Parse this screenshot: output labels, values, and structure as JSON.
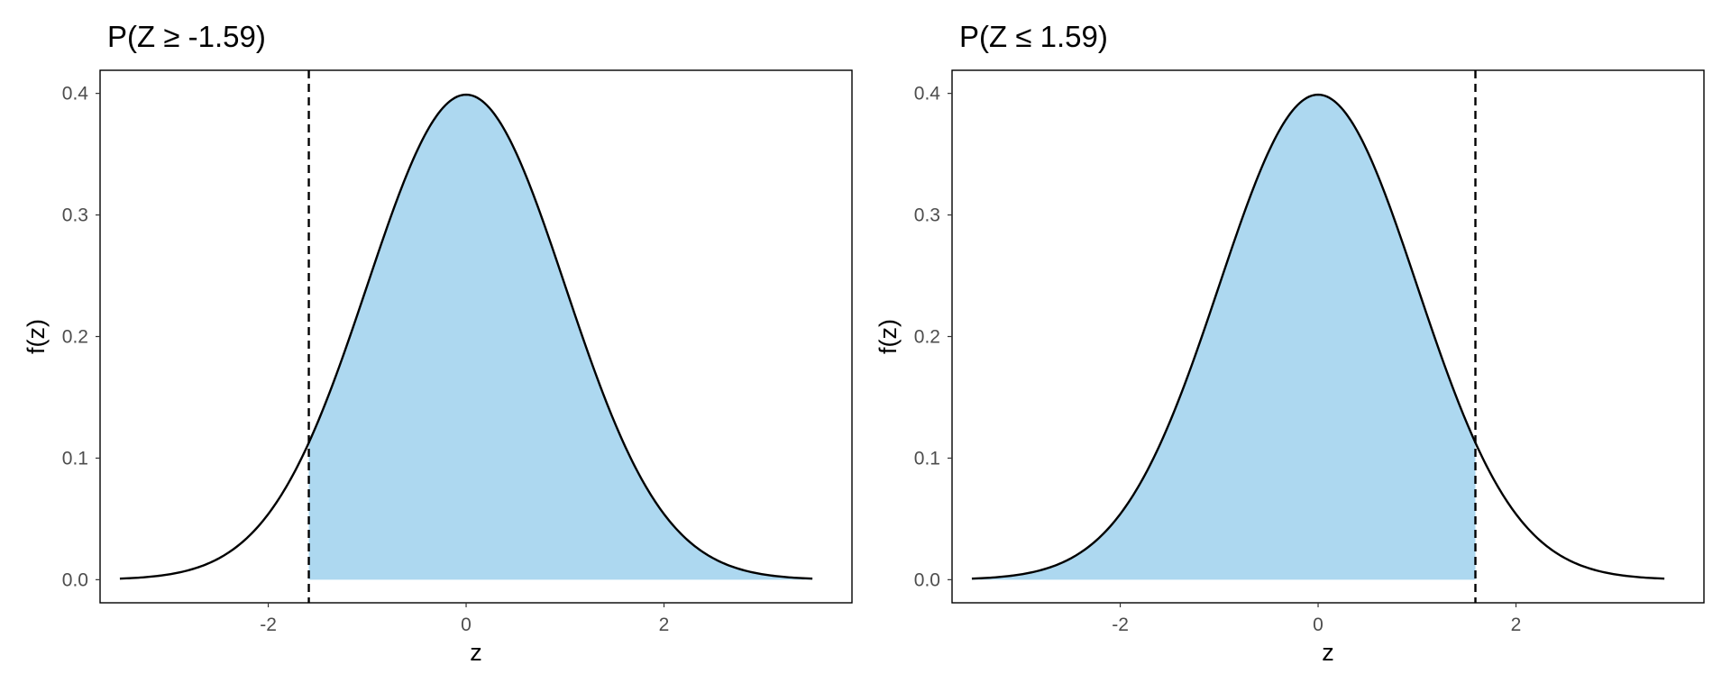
{
  "chart_data": [
    {
      "type": "area",
      "title": "P(Z ≥ -1.59)",
      "xlabel": "z",
      "ylabel": "f(z)",
      "xlim": [
        -3.7,
        3.9
      ],
      "ylim": [
        -0.019,
        0.419
      ],
      "x_ticks": [
        -2,
        0,
        2
      ],
      "x_tick_labels": [
        "-2",
        "0",
        "2"
      ],
      "y_ticks": [
        0.0,
        0.1,
        0.2,
        0.3,
        0.4
      ],
      "y_tick_labels": [
        "0.0",
        "0.1",
        "0.2",
        "0.3",
        "0.4"
      ],
      "curve": {
        "distribution": "standard normal density",
        "x_from": -3.5,
        "x_to": 3.5
      },
      "shaded_region": {
        "from": -1.59,
        "to": 3.5
      },
      "cutoff": -1.59,
      "fill_color": "#add8f0",
      "curve_color": "#000000",
      "grid": false
    },
    {
      "type": "area",
      "title": "P(Z ≤ 1.59)",
      "xlabel": "z",
      "ylabel": "f(z)",
      "xlim": [
        -3.7,
        3.9
      ],
      "ylim": [
        -0.019,
        0.419
      ],
      "x_ticks": [
        -2,
        0,
        2
      ],
      "x_tick_labels": [
        "-2",
        "0",
        "2"
      ],
      "y_ticks": [
        0.0,
        0.1,
        0.2,
        0.3,
        0.4
      ],
      "y_tick_labels": [
        "0.0",
        "0.1",
        "0.2",
        "0.3",
        "0.4"
      ],
      "curve": {
        "distribution": "standard normal density",
        "x_from": -3.5,
        "x_to": 3.5
      },
      "shaded_region": {
        "from": -3.5,
        "to": 1.59
      },
      "cutoff": 1.59,
      "fill_color": "#add8f0",
      "curve_color": "#000000",
      "grid": false
    }
  ]
}
